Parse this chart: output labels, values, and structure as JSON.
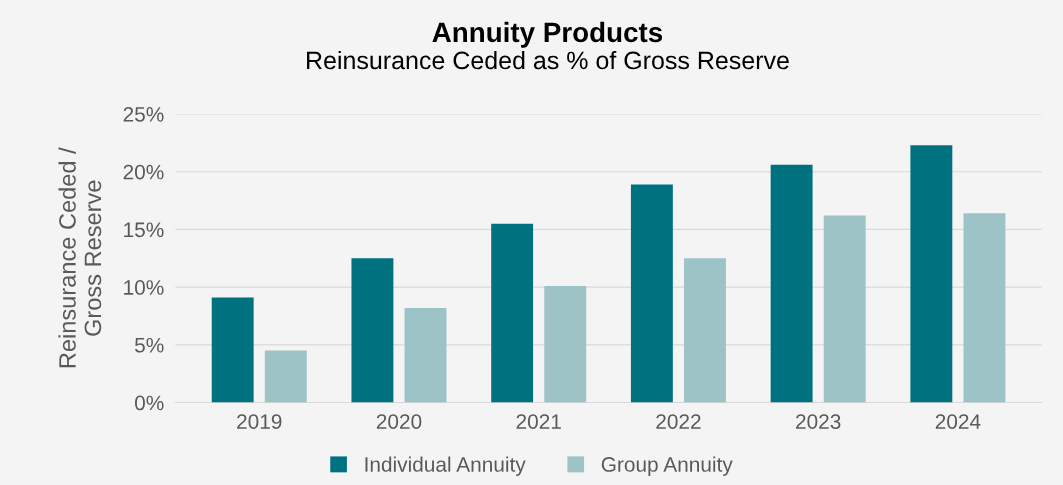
{
  "chart_data": {
    "type": "bar",
    "title": "Annuity Products",
    "subtitle": "Reinsurance Ceded as % of Gross Reserve",
    "ylabel": "Reinsurance Ceded /\nGross Reserve",
    "categories": [
      "2019",
      "2020",
      "2021",
      "2022",
      "2023",
      "2024"
    ],
    "series": [
      {
        "name": "Individual Annuity",
        "color": "#00727f",
        "values": [
          9.1,
          12.5,
          15.5,
          18.9,
          20.6,
          22.3
        ]
      },
      {
        "name": "Group Annuity",
        "color": "#9dc3c6",
        "values": [
          4.5,
          8.2,
          10.1,
          12.5,
          16.2,
          16.4
        ]
      }
    ],
    "ylim": [
      0,
      25
    ],
    "yticks": [
      {
        "value": 0,
        "label": "0%"
      },
      {
        "value": 5,
        "label": "5%"
      },
      {
        "value": 10,
        "label": "10%"
      },
      {
        "value": 15,
        "label": "15%"
      },
      {
        "value": 20,
        "label": "20%"
      },
      {
        "value": 25,
        "label": "25%"
      }
    ],
    "grid": "y",
    "legend": "bottom"
  }
}
